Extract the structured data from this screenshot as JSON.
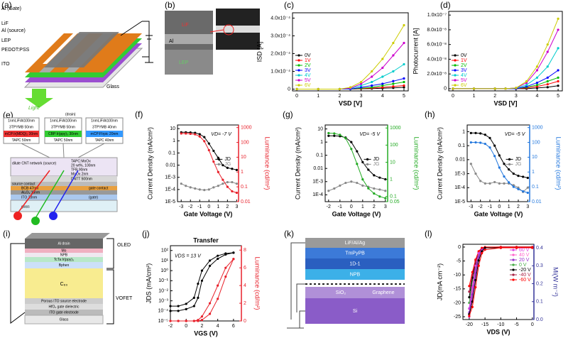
{
  "panel_a": {
    "label": "(a)",
    "texts": [
      "Al (Gate)",
      "LiF",
      "Al (source)",
      "LEP",
      "PEDOT:PSS",
      "ITO",
      "Glass",
      "Light"
    ]
  },
  "panel_b": {
    "label": "(b)",
    "texts": [
      "LiF",
      "Al",
      "LEP"
    ]
  },
  "panel_e": {
    "label": "(e)",
    "texts": [
      "(drain)",
      "1nmLiF/Al100nm",
      "3TPYMB 50nm",
      "mCP:Ir(MDQ)₂ 30nm",
      "TAPC 50nm",
      "1nmLiF/Al100nm",
      "3TPYMB 50nm",
      "CBP:Ir(ppy)₃ 30nm",
      "TAPC 50nm",
      "1nmLiF/Al100nm",
      "3TPYMB 40nm",
      "mCP:FIrpic 20nm",
      "TAPC 40nm",
      "dilute CNT network (source)",
      "TAPC:MoOx",
      "20 wt%, 100nm",
      "TFB 90nm",
      "MoOx 2nm",
      "DNTT 500nm",
      "source contact",
      "BCB 47nm",
      "gate contact",
      "Al₂O₃ 15nm",
      "ITO 23nm",
      "(gate)",
      "glass"
    ]
  },
  "panel_i": {
    "label": "(i)",
    "texts": [
      "OLED",
      "Al drain",
      "Mo",
      "NPB",
      "TcTa:Ir(ppy)₃",
      "Bphen",
      "C₆₀",
      "VOFET",
      "Porous ITO source electrode",
      "HfO₂ gate dielectric",
      "ITO gate electrode",
      "Glass"
    ]
  },
  "panel_k": {
    "label": "(k)",
    "texts": [
      "LiF/Al/Ag",
      "TmPyPB",
      "1D-1",
      "NPB",
      "SiO₂",
      "Graphene",
      "Si"
    ]
  },
  "chart_data": [
    {
      "type": "line",
      "label": "(c)",
      "x_label": "VSD [V]",
      "y_label": "ISD [A]",
      "legend": "lower left",
      "x": [
        0,
        1,
        2,
        2.5,
        3,
        3.5,
        4,
        4.5,
        5
      ],
      "xlim": [
        -0.2,
        5.2
      ],
      "xticks": [
        0,
        1,
        2,
        3,
        4,
        5
      ],
      "ylim": [
        -1e-05,
        0.00043
      ],
      "yticks": [
        0,
        {
          "value": 0.0001,
          "label": "1.0x10⁻⁴"
        },
        {
          "value": 0.0002,
          "label": "2.0x10⁻⁴"
        },
        {
          "value": 0.0003,
          "label": "3.0x10⁻⁴"
        },
        {
          "value": 0.0004,
          "label": "4.0x10⁻⁴"
        }
      ],
      "series": [
        {
          "name": "0V",
          "color": "#000000",
          "values": [
            0,
            0,
            0,
            0,
            2e-06,
            3e-06,
            5e-06,
            7e-06,
            1e-05
          ]
        },
        {
          "name": "1V",
          "color": "#ff0000",
          "values": [
            0,
            0,
            0,
            0,
            3e-06,
            6e-06,
            1e-05,
            1.5e-05,
            2e-05
          ]
        },
        {
          "name": "2V",
          "color": "#00bb00",
          "values": [
            0,
            0,
            0,
            0,
            5e-06,
            1e-05,
            2e-05,
            3e-05,
            4e-05
          ]
        },
        {
          "name": "3V",
          "color": "#0000ff",
          "values": [
            0,
            0,
            0,
            0,
            1e-05,
            2e-05,
            3e-05,
            4.5e-05,
            6e-05
          ]
        },
        {
          "name": "4V",
          "color": "#00cccc",
          "values": [
            0,
            0,
            0,
            3e-06,
            2e-05,
            4e-05,
            7e-05,
            0.0001,
            0.00014
          ]
        },
        {
          "name": "5V",
          "color": "#cc00cc",
          "values": [
            0,
            0,
            0,
            5e-06,
            3e-05,
            7e-05,
            0.00012,
            0.00019,
            0.00026
          ]
        },
        {
          "name": "6V",
          "color": "#cccc00",
          "values": [
            0,
            0,
            0,
            1e-05,
            4e-05,
            0.0001,
            0.00017,
            0.00026,
            0.00036
          ]
        }
      ]
    },
    {
      "type": "line",
      "label": "(d)",
      "x_label": "VSD [V]",
      "y_label": "Photocurrent [A]",
      "legend": "lower left",
      "x": [
        0,
        1,
        2,
        2.5,
        3,
        3.5,
        4,
        4.5,
        5
      ],
      "xlim": [
        -0.2,
        5.2
      ],
      "xticks": [
        0,
        1,
        2,
        3,
        4,
        5
      ],
      "ylim": [
        -3e-09,
        1.05e-07
      ],
      "yticks": [
        0,
        {
          "value": 2e-08,
          "label": "2.0x10⁻⁸"
        },
        {
          "value": 4e-08,
          "label": "4.0x10⁻⁸"
        },
        {
          "value": 6e-08,
          "label": "6.0x10⁻⁸"
        },
        {
          "value": 8e-08,
          "label": "8.0x10⁻⁸"
        },
        {
          "value": 1e-07,
          "label": "1.0x10⁻⁷"
        }
      ],
      "series": [
        {
          "name": "0V",
          "color": "#000000",
          "values": [
            0,
            0,
            0,
            0,
            0,
            0,
            1e-09,
            2e-09,
            4e-09
          ]
        },
        {
          "name": "1V",
          "color": "#ff0000",
          "values": [
            0,
            0,
            0,
            0,
            0,
            1e-09,
            3e-09,
            6e-09,
            1e-08
          ]
        },
        {
          "name": "2V",
          "color": "#00bb00",
          "values": [
            0,
            0,
            0,
            0,
            0,
            2e-09,
            5e-09,
            1e-08,
            1.5e-08
          ]
        },
        {
          "name": "3V",
          "color": "#0000ff",
          "values": [
            0,
            0,
            0,
            0,
            0,
            3e-09,
            8e-09,
            1.5e-08,
            2.5e-08
          ]
        },
        {
          "name": "4V",
          "color": "#00cccc",
          "values": [
            0,
            0,
            0,
            0,
            1e-09,
            5e-09,
            1.5e-08,
            3e-08,
            5.5e-08
          ]
        },
        {
          "name": "5V",
          "color": "#cc00cc",
          "values": [
            0,
            0,
            0,
            0,
            1e-09,
            8e-09,
            2.5e-08,
            5e-08,
            8e-08
          ]
        },
        {
          "name": "6V",
          "color": "#cccc00",
          "values": [
            0,
            0,
            0,
            0,
            1e-09,
            1e-08,
            3e-08,
            6e-08,
            9.5e-08
          ]
        }
      ]
    },
    {
      "type": "line",
      "label": "(f)",
      "x_label": "Gate Voltage (V)",
      "y_label": "Current Density (mA/cm²)",
      "y2_label": "Luminance (cd/m²)",
      "y2_color": "#e8202a",
      "annotation": "VD= -7 V",
      "legend": "right",
      "x": [
        -3,
        -2.5,
        -2,
        -1.5,
        -1,
        -0.5,
        0,
        0.5,
        1,
        1.5,
        2,
        2.5,
        3
      ],
      "xlim": [
        -3.4,
        3.2
      ],
      "xticks": [
        -3,
        -2,
        -1,
        0,
        1,
        2,
        3
      ],
      "ylog": true,
      "ylim": [
        1e-05,
        20
      ],
      "yticks": [
        10,
        1,
        0.1,
        0.01,
        {
          "value": 0.001,
          "label": "1E-3"
        },
        {
          "value": 0.0001,
          "label": "1E-4"
        },
        {
          "value": 1e-05,
          "label": "1E-5"
        }
      ],
      "y2log": true,
      "y2lim": [
        0.01,
        1500
      ],
      "y2ticks": [
        1000,
        100,
        10,
        1,
        0.1,
        0.01
      ],
      "series": [
        {
          "name": "JD",
          "color": "#000000",
          "values": [
            5,
            5,
            4.8,
            4.5,
            3.5,
            2,
            0.6,
            0.15,
            0.04,
            0.01,
            0.006,
            0.005,
            0.004
          ]
        },
        {
          "name": "JG",
          "color": "#888888",
          "values": [
            0.0003,
            0.0002,
            0.00015,
            0.00012,
            0.0001,
            9e-05,
            0.0001,
            0.00015,
            0.0002,
            0.0003,
            0.0004,
            0.0004,
            0.0003
          ]
        },
        {
          "color": "#e8202a",
          "axis": "y2",
          "values": [
            400,
            400,
            380,
            350,
            250,
            120,
            30,
            5,
            1,
            0.3,
            0.1,
            0.05,
            0.04
          ]
        }
      ]
    },
    {
      "type": "line",
      "label": "(g)",
      "x_label": "Gate Voltage (V)",
      "y_label": "Current Density (mA/cm²)",
      "y2_label": "Luminance (cd/m²)",
      "y2_color": "#22aa22",
      "annotation": "VD= -5 V",
      "legend": "right",
      "x": [
        -2,
        -1.5,
        -1,
        -0.5,
        0,
        0.5,
        1,
        1.5,
        2,
        2.5,
        3
      ],
      "xlim": [
        -2.3,
        3.2
      ],
      "xticks": [
        -2,
        -1,
        0,
        1,
        2,
        3
      ],
      "ylog": true,
      "ylim": [
        3e-05,
        20
      ],
      "yticks": [
        10,
        1,
        0.1,
        0.01,
        {
          "value": 0.001,
          "label": "1E-3"
        },
        {
          "value": 0.0001,
          "label": "1E-4"
        }
      ],
      "y2log": true,
      "y2lim": [
        0.05,
        1500
      ],
      "y2ticks": [
        1000,
        100,
        10,
        1,
        0.1,
        0.05
      ],
      "series": [
        {
          "name": "JD",
          "color": "#000000",
          "values": [
            3,
            3,
            2.8,
            2.2,
            1,
            0.2,
            0.03,
            0.008,
            0.003,
            0.002,
            0.0015
          ]
        },
        {
          "name": "JG",
          "color": "#888888",
          "values": [
            0.0002,
            0.0003,
            0.0005,
            0.0008,
            0.001,
            0.0008,
            0.0005,
            0.0004,
            0.0003,
            0.00025,
            0.0002
          ]
        },
        {
          "color": "#22aa22",
          "axis": "y2",
          "values": [
            500,
            480,
            400,
            250,
            60,
            8,
            1,
            0.3,
            0.15,
            0.1,
            0.08
          ]
        }
      ]
    },
    {
      "type": "line",
      "label": "(h)",
      "x_label": "Gate Voltage (V)",
      "y_label": "Current Density (mA/cm²)",
      "y2_label": "Luminance (cd/m²)",
      "y2_color": "#2277dd",
      "annotation": "VD= -5 V",
      "legend": "right",
      "x": [
        -3,
        -2.5,
        -2,
        -1.5,
        -1,
        -0.5,
        0,
        0.5,
        1,
        1.5,
        2,
        2.5,
        3
      ],
      "xlim": [
        -3.4,
        3.2
      ],
      "xticks": [
        -3,
        -2,
        -1,
        0,
        1,
        2,
        3
      ],
      "ylog": true,
      "ylim": [
        1e-05,
        3
      ],
      "yticks": [
        1,
        0.1,
        0.01,
        {
          "value": 0.001,
          "label": "1E-3"
        },
        {
          "value": 0.0001,
          "label": "1E-4"
        },
        {
          "value": 1e-05,
          "label": "1E-5"
        }
      ],
      "y2log": true,
      "y2lim": [
        0.01,
        1500
      ],
      "y2ticks": [
        1000,
        100,
        10,
        1,
        0.1,
        0.01
      ],
      "series": [
        {
          "name": "JD",
          "color": "#000000",
          "values": [
            0.8,
            0.8,
            0.75,
            0.6,
            0.35,
            0.1,
            0.02,
            0.005,
            0.002,
            0.001,
            0.0007,
            0.0006,
            0.0005
          ]
        },
        {
          "name": "JG",
          "color": "#888888",
          "values": [
            0.005,
            0.001,
            0.0003,
            0.0002,
            0.0002,
            0.00025,
            0.0002,
            0.0002,
            0.0002,
            0.00015,
            0.0001,
            5e-05,
            0.0001
          ]
        },
        {
          "color": "#2277dd",
          "axis": "y2",
          "values": [
            100,
            100,
            95,
            80,
            45,
            12,
            2,
            0.5,
            0.2,
            0.1,
            0.07,
            0.05,
            0.04
          ]
        }
      ]
    },
    {
      "type": "line",
      "label": "(j)",
      "title": "Transfer",
      "x_label": "VGS (V)",
      "y_label": "JDS (mA/cm²)",
      "y2_label": "Luminance (cd/m²)",
      "y2_color": "#e8202a",
      "annotation": "VDS = 13 V",
      "x": [
        -2,
        -1,
        0,
        1,
        1.5,
        2,
        3,
        4,
        5,
        6
      ],
      "xlim": [
        -2,
        7
      ],
      "xticks": [
        -2,
        0,
        2,
        4,
        6
      ],
      "ylog": true,
      "ylim": [
        1e-05,
        300
      ],
      "yticks": [
        {
          "value": 100,
          "label": "10²"
        },
        {
          "value": 10,
          "label": "10¹"
        },
        {
          "value": 1,
          "label": "10⁰"
        },
        {
          "value": 0.1,
          "label": "10⁻¹"
        },
        {
          "value": 0.01,
          "label": "10⁻²"
        },
        {
          "value": 0.001,
          "label": "10⁻³"
        },
        {
          "value": 0.0001,
          "label": "10⁻⁴"
        },
        {
          "value": 1e-05,
          "label": "10⁻⁵"
        }
      ],
      "y2lim": [
        0,
        8.5
      ],
      "y2ticks": [
        0,
        2,
        4,
        6,
        8
      ],
      "series": [
        {
          "color": "#000000",
          "values": [
            0.0001,
            0.0001,
            0.00015,
            0.0003,
            0.002,
            0.1,
            3,
            15,
            40,
            60
          ]
        },
        {
          "color": "#000000",
          "values": [
            0.0003,
            0.0003,
            0.0005,
            0.002,
            0.05,
            1,
            10,
            30,
            50,
            60
          ]
        },
        {
          "color": "#e8202a",
          "axis": "y2",
          "values": [
            0,
            0,
            0,
            0,
            0.1,
            0.5,
            2,
            4,
            6,
            7
          ]
        },
        {
          "color": "#e8202a",
          "axis": "y2",
          "values": [
            0,
            0,
            0,
            0,
            0,
            0.1,
            0.8,
            2.5,
            5,
            7
          ]
        }
      ]
    },
    {
      "type": "line",
      "label": "(l)",
      "x_label": "VDS (V)",
      "y_label": "JD(mA cm⁻²)",
      "y2_label": "Mi(W m⁻²)",
      "y2_color": "#333399",
      "legend": "upper right",
      "x": [
        -20,
        -19,
        -18,
        -17,
        -16,
        -15,
        -10,
        -5,
        0
      ],
      "xlim": [
        -22,
        0.5
      ],
      "xticks": [
        -20,
        -15,
        -10,
        -5,
        0
      ],
      "ylim": [
        -26,
        1
      ],
      "yticks": [
        0,
        -5,
        -10,
        -15,
        -20,
        -25
      ],
      "y2lim": [
        0,
        0.42
      ],
      "y2ticks": [
        {
          "value": 0,
          "label": "0.0"
        },
        0.1,
        0.2,
        0.3,
        0.4
      ],
      "series": [
        {
          "name": "60 V",
          "color": "#e040e0",
          "values": [
            -25,
            -18,
            -10,
            -4,
            -1,
            -0.3,
            0,
            0,
            0
          ]
        },
        {
          "name": "40 V",
          "color": "#ff66cc",
          "values": [
            -24,
            -16,
            -9,
            -3.5,
            -1,
            -0.2,
            0,
            0,
            0
          ]
        },
        {
          "name": "20 V",
          "color": "#9933cc",
          "values": [
            -22,
            -14,
            -8,
            -3,
            -0.8,
            -0.2,
            0,
            0,
            0
          ]
        },
        {
          "name": "0 V",
          "color": "#44aa44",
          "values": [
            -20,
            -12,
            -7,
            -2.5,
            -0.6,
            -0.1,
            0,
            0,
            0
          ]
        },
        {
          "name": "-20 V",
          "color": "#000000",
          "values": [
            -18,
            -11,
            -6,
            -2,
            -0.5,
            -0.1,
            0,
            0,
            0
          ]
        },
        {
          "name": "-40 V",
          "color": "#aa2244",
          "values": [
            -16,
            -10,
            -5,
            -1.8,
            -0.4,
            -0.1,
            0,
            0,
            0
          ]
        },
        {
          "name": "-60 V",
          "color": "#ff0000",
          "values": [
            -14,
            -9,
            -4.5,
            -1.5,
            -0.3,
            0,
            0,
            0,
            0
          ]
        },
        {
          "color": "#e040e0",
          "axis": "y2",
          "values": [
            0.06,
            0.18,
            0.3,
            0.37,
            0.39,
            0.4,
            0.4,
            0.4,
            0.4
          ]
        },
        {
          "color": "#9933cc",
          "axis": "y2",
          "values": [
            0.04,
            0.14,
            0.26,
            0.35,
            0.39,
            0.4,
            0.4,
            0.4,
            0.4
          ]
        },
        {
          "color": "#000000",
          "axis": "y2",
          "values": [
            0.03,
            0.1,
            0.22,
            0.33,
            0.38,
            0.4,
            0.4,
            0.4,
            0.4
          ]
        },
        {
          "color": "#ff0000",
          "axis": "y2",
          "values": [
            0.02,
            0.07,
            0.18,
            0.3,
            0.37,
            0.39,
            0.4,
            0.4,
            0.4
          ]
        }
      ]
    }
  ]
}
